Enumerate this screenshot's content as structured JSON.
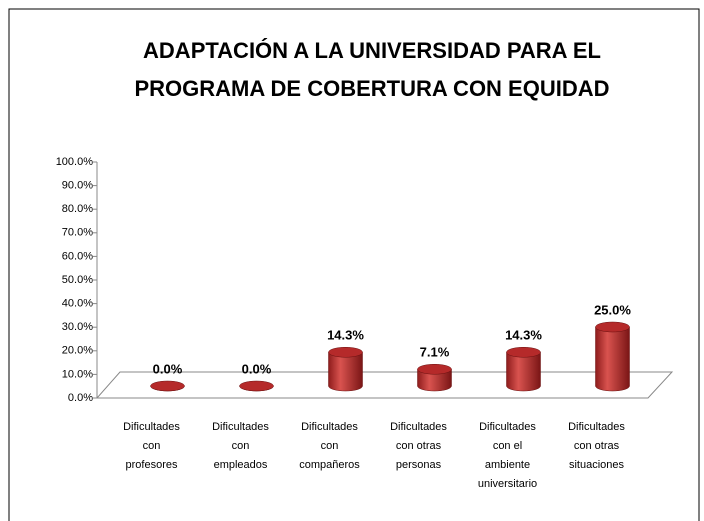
{
  "chart_data": {
    "type": "bar",
    "title": [
      "ADAPTACIÓN A LA UNIVERSIDAD PARA EL",
      "PROGRAMA DE COBERTURA CON EQUIDAD"
    ],
    "categories": [
      "Dificultades con profesores",
      "Dificultades con empleados",
      "Dificultades con compañeros",
      "Dificultades con otras personas",
      "Dificultades con el ambiente universitario",
      "Dificultades con otras situaciones"
    ],
    "values": [
      0,
      0,
      14.3,
      7.1,
      14.3,
      25
    ],
    "value_labels": [
      "0.0%",
      "0.0%",
      "14.3%",
      "7.1%",
      "14.3%",
      "25.0%"
    ],
    "color": "#c0392b",
    "ylim": [
      0,
      100
    ],
    "yticks": [
      {
        "value": 0,
        "label": "0.0%"
      },
      {
        "value": 10,
        "label": "10.0%"
      },
      {
        "value": 20,
        "label": "20.0%"
      },
      {
        "value": 30,
        "label": "30.0%"
      },
      {
        "value": 40,
        "label": "40.0%"
      },
      {
        "value": 50,
        "label": "50.0%"
      },
      {
        "value": 60,
        "label": "60.0%"
      },
      {
        "value": 70,
        "label": "70.0%"
      },
      {
        "value": 80,
        "label": "80.0%"
      },
      {
        "value": 90,
        "label": "90.0%"
      },
      {
        "value": 100,
        "label": "100.0%"
      }
    ]
  }
}
